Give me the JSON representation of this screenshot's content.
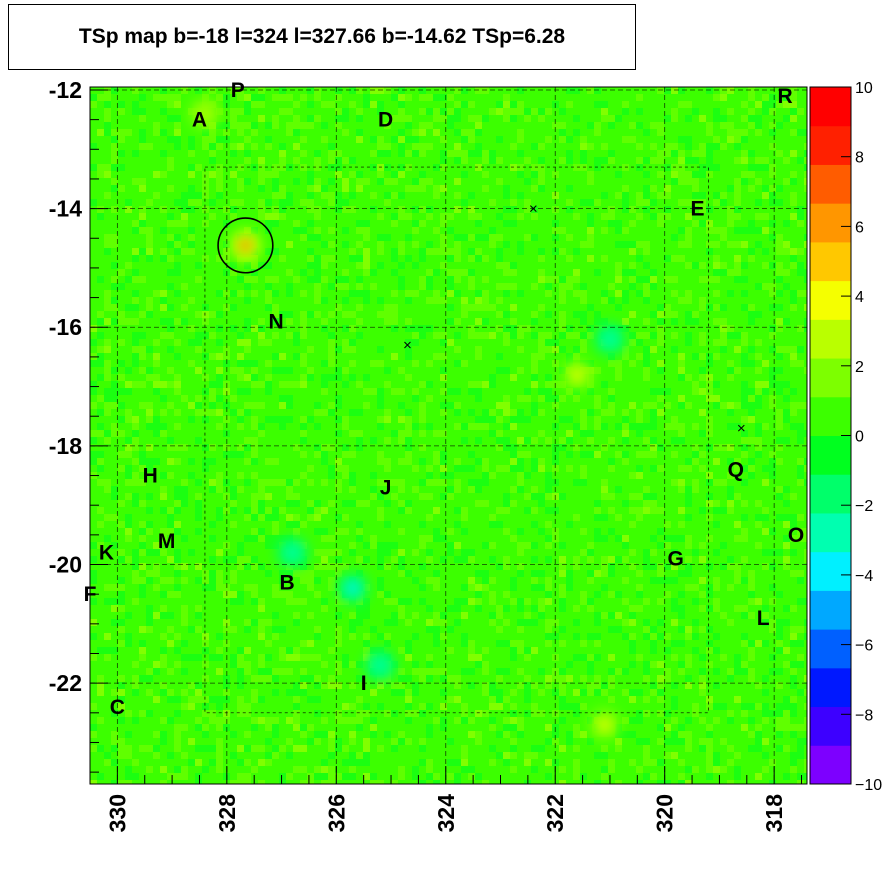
{
  "chart_data": {
    "type": "heatmap",
    "title": "TSp map b=-18 l=324 l=327.66 b=-14.62 TSp=6.28",
    "x_range": [
      330.5,
      317.4
    ],
    "y_range": [
      -23.7,
      -11.95
    ],
    "x_ticks": [
      "330",
      "328",
      "326",
      "324",
      "322",
      "320",
      "318"
    ],
    "y_ticks": [
      "-12",
      "-14",
      "-16",
      "-18",
      "-20",
      "-22"
    ],
    "z_range": [
      -10,
      10
    ],
    "z_ticks": [
      "10",
      "8",
      "6",
      "4",
      "2",
      "0",
      "−2",
      "−4",
      "−6",
      "−8",
      "−10"
    ],
    "colorbar_colors": [
      "#7d00ff",
      "#3d00ff",
      "#0018ff",
      "#0060ff",
      "#00a8ff",
      "#00f0ff",
      "#00ffb0",
      "#00ff6a",
      "#00ff1f",
      "#3cff00",
      "#7dff00",
      "#baff00",
      "#f5ff00",
      "#ffc800",
      "#ff9600",
      "#ff5c00",
      "#ff2000",
      "#ff0000"
    ],
    "hotspots": [
      {
        "l": 327.66,
        "b": -14.62,
        "ts": 6.28
      },
      {
        "l": 321.6,
        "b": -16.8,
        "ts": 3.6
      },
      {
        "l": 321.1,
        "b": -22.7,
        "ts": 3.8
      },
      {
        "l": 328.4,
        "b": -12.4,
        "ts": 2.4
      }
    ],
    "cold_spots": [
      {
        "l": 325.7,
        "b": -20.4,
        "ts": -3.5
      },
      {
        "l": 326.8,
        "b": -19.8,
        "ts": -3.0
      },
      {
        "l": 321.0,
        "b": -16.2,
        "ts": -3.0
      },
      {
        "l": 325.2,
        "b": -21.7,
        "ts": -2.8
      }
    ],
    "circle": {
      "l": 327.66,
      "b": -14.62,
      "radius_deg": 0.5
    },
    "cross_markers": [
      {
        "l": 324.7,
        "b": -16.3
      },
      {
        "l": 322.4,
        "b": -14.0
      },
      {
        "l": 318.6,
        "b": -17.7
      }
    ],
    "labels": [
      {
        "text": "P",
        "l": 327.8,
        "b": -12.0
      },
      {
        "text": "A",
        "l": 328.5,
        "b": -12.5
      },
      {
        "text": "D",
        "l": 325.1,
        "b": -12.5
      },
      {
        "text": "R",
        "l": 317.8,
        "b": -12.1
      },
      {
        "text": "E",
        "l": 319.4,
        "b": -14.0
      },
      {
        "text": "N",
        "l": 327.1,
        "b": -15.9
      },
      {
        "text": "H",
        "l": 329.4,
        "b": -18.5
      },
      {
        "text": "Q",
        "l": 318.7,
        "b": -18.4
      },
      {
        "text": "J",
        "l": 325.1,
        "b": -18.7
      },
      {
        "text": "O",
        "l": 317.6,
        "b": -19.5
      },
      {
        "text": "M",
        "l": 329.1,
        "b": -19.6
      },
      {
        "text": "K",
        "l": 330.2,
        "b": -19.8
      },
      {
        "text": "G",
        "l": 319.8,
        "b": -19.9
      },
      {
        "text": "B",
        "l": 326.9,
        "b": -20.3
      },
      {
        "text": "F",
        "l": 330.5,
        "b": -20.5
      },
      {
        "text": "L",
        "l": 318.2,
        "b": -20.9
      },
      {
        "text": "I",
        "l": 325.5,
        "b": -22.0
      },
      {
        "text": "C",
        "l": 330.0,
        "b": -22.4
      }
    ],
    "grid_lines_l": [
      330,
      328,
      326,
      324,
      322,
      320,
      318
    ],
    "grid_lines_b": [
      -12,
      -14,
      -16,
      -18,
      -20,
      -22
    ]
  }
}
